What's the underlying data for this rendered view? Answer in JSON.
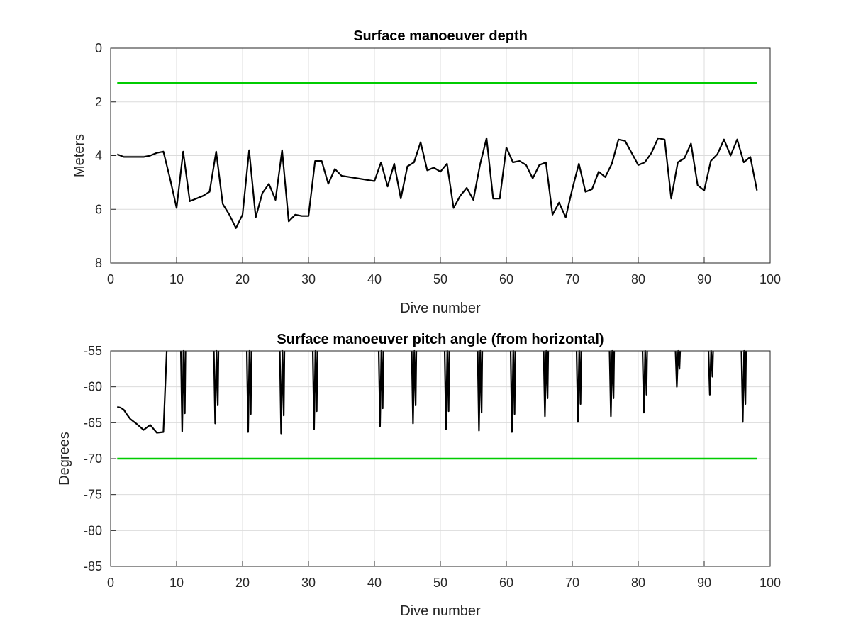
{
  "chart_data": [
    {
      "type": "line",
      "title": "Surface manoeuver depth",
      "xlabel": "Dive number",
      "ylabel": "Meters",
      "xlim": [
        0,
        100
      ],
      "ylim": [
        0,
        8
      ],
      "y_reversed": true,
      "grid": true,
      "xticks": [
        "0",
        "10",
        "20",
        "30",
        "40",
        "50",
        "60",
        "70",
        "80",
        "90",
        "100"
      ],
      "yticks": [
        "0",
        "2",
        "4",
        "6",
        "8"
      ],
      "series": [
        {
          "color": "#000000",
          "x": [
            1,
            2,
            3,
            4,
            5,
            6,
            7,
            8,
            9,
            10,
            11,
            12,
            13,
            14,
            15,
            16,
            17,
            18,
            19,
            20,
            21,
            22,
            23,
            24,
            25,
            26,
            27,
            28,
            29,
            30,
            31,
            32,
            33,
            34,
            35,
            40,
            41,
            42,
            43,
            44,
            45,
            46,
            47,
            48,
            49,
            50,
            51,
            52,
            53,
            54,
            55,
            56,
            57,
            58,
            59,
            60,
            61,
            62,
            63,
            64,
            65,
            66,
            67,
            68,
            69,
            70,
            71,
            72,
            73,
            74,
            75,
            76,
            77,
            78,
            79,
            80,
            81,
            82,
            83,
            84,
            85,
            86,
            87,
            88,
            89,
            90,
            91,
            92,
            93,
            94,
            95,
            96,
            97,
            98
          ],
          "y": [
            3.95,
            4.05,
            4.05,
            4.05,
            4.05,
            4.0,
            3.9,
            3.85,
            4.85,
            5.95,
            3.85,
            5.7,
            5.6,
            5.5,
            5.35,
            3.85,
            5.8,
            6.2,
            6.7,
            6.2,
            3.8,
            6.3,
            5.4,
            5.05,
            5.65,
            3.8,
            6.45,
            6.2,
            6.25,
            6.25,
            4.2,
            4.2,
            5.05,
            4.5,
            4.75,
            4.95,
            4.25,
            5.15,
            4.3,
            5.6,
            4.4,
            4.25,
            3.5,
            4.55,
            4.45,
            4.6,
            4.3,
            5.95,
            5.5,
            5.2,
            5.65,
            4.35,
            3.35,
            5.6,
            5.6,
            3.7,
            4.25,
            4.2,
            4.35,
            4.85,
            4.35,
            4.25,
            6.2,
            5.75,
            6.3,
            5.25,
            4.3,
            5.35,
            5.25,
            4.6,
            4.8,
            4.3,
            3.4,
            3.45,
            3.9,
            4.35,
            4.25,
            3.9,
            3.35,
            3.4,
            5.6,
            4.25,
            4.1,
            3.55,
            5.1,
            5.3,
            4.2,
            3.95,
            3.4,
            4.0,
            3.4,
            4.25,
            4.05,
            5.3
          ]
        },
        {
          "color": "#00cc00",
          "x": [
            1,
            98
          ],
          "y": [
            1.3,
            1.3
          ]
        }
      ]
    },
    {
      "type": "line",
      "title": "Surface manoeuver pitch angle (from horizontal)",
      "xlabel": "Dive number",
      "ylabel": "Degrees",
      "xlim": [
        0,
        100
      ],
      "ylim": [
        -85,
        -55
      ],
      "grid": true,
      "xticks": [
        "0",
        "10",
        "20",
        "30",
        "40",
        "50",
        "60",
        "70",
        "80",
        "90",
        "100"
      ],
      "yticks": [
        "-55",
        "-60",
        "-65",
        "-70",
        "-75",
        "-80",
        "-85"
      ],
      "series": [
        {
          "color": "#000000",
          "x": [
            1,
            1.5,
            2,
            2.5,
            3,
            4,
            5,
            6,
            7,
            8,
            8.5
          ],
          "y": [
            -62.8,
            -62.9,
            -63.2,
            -63.9,
            -64.5,
            -65.2,
            -66.0,
            -65.3,
            -66.4,
            -66.3,
            -55
          ],
          "spikes": [
            {
              "x": 11,
              "min": -66.2
            },
            {
              "x": 16,
              "min": -65.1
            },
            {
              "x": 21,
              "min": -66.3
            },
            {
              "x": 26,
              "min": -66.5
            },
            {
              "x": 31,
              "min": -65.9
            },
            {
              "x": 41,
              "min": -65.5
            },
            {
              "x": 46,
              "min": -65.1
            },
            {
              "x": 51,
              "min": -65.9
            },
            {
              "x": 56,
              "min": -66.1
            },
            {
              "x": 61,
              "min": -66.3
            },
            {
              "x": 66,
              "min": -64.1
            },
            {
              "x": 71,
              "min": -64.9
            },
            {
              "x": 76,
              "min": -64.1
            },
            {
              "x": 81,
              "min": -63.6
            },
            {
              "x": 86,
              "min": -60.0
            },
            {
              "x": 91,
              "min": -61.1
            },
            {
              "x": 96,
              "min": -64.9
            }
          ]
        },
        {
          "color": "#00cc00",
          "x": [
            1,
            98
          ],
          "y": [
            -70,
            -70
          ]
        }
      ]
    }
  ]
}
